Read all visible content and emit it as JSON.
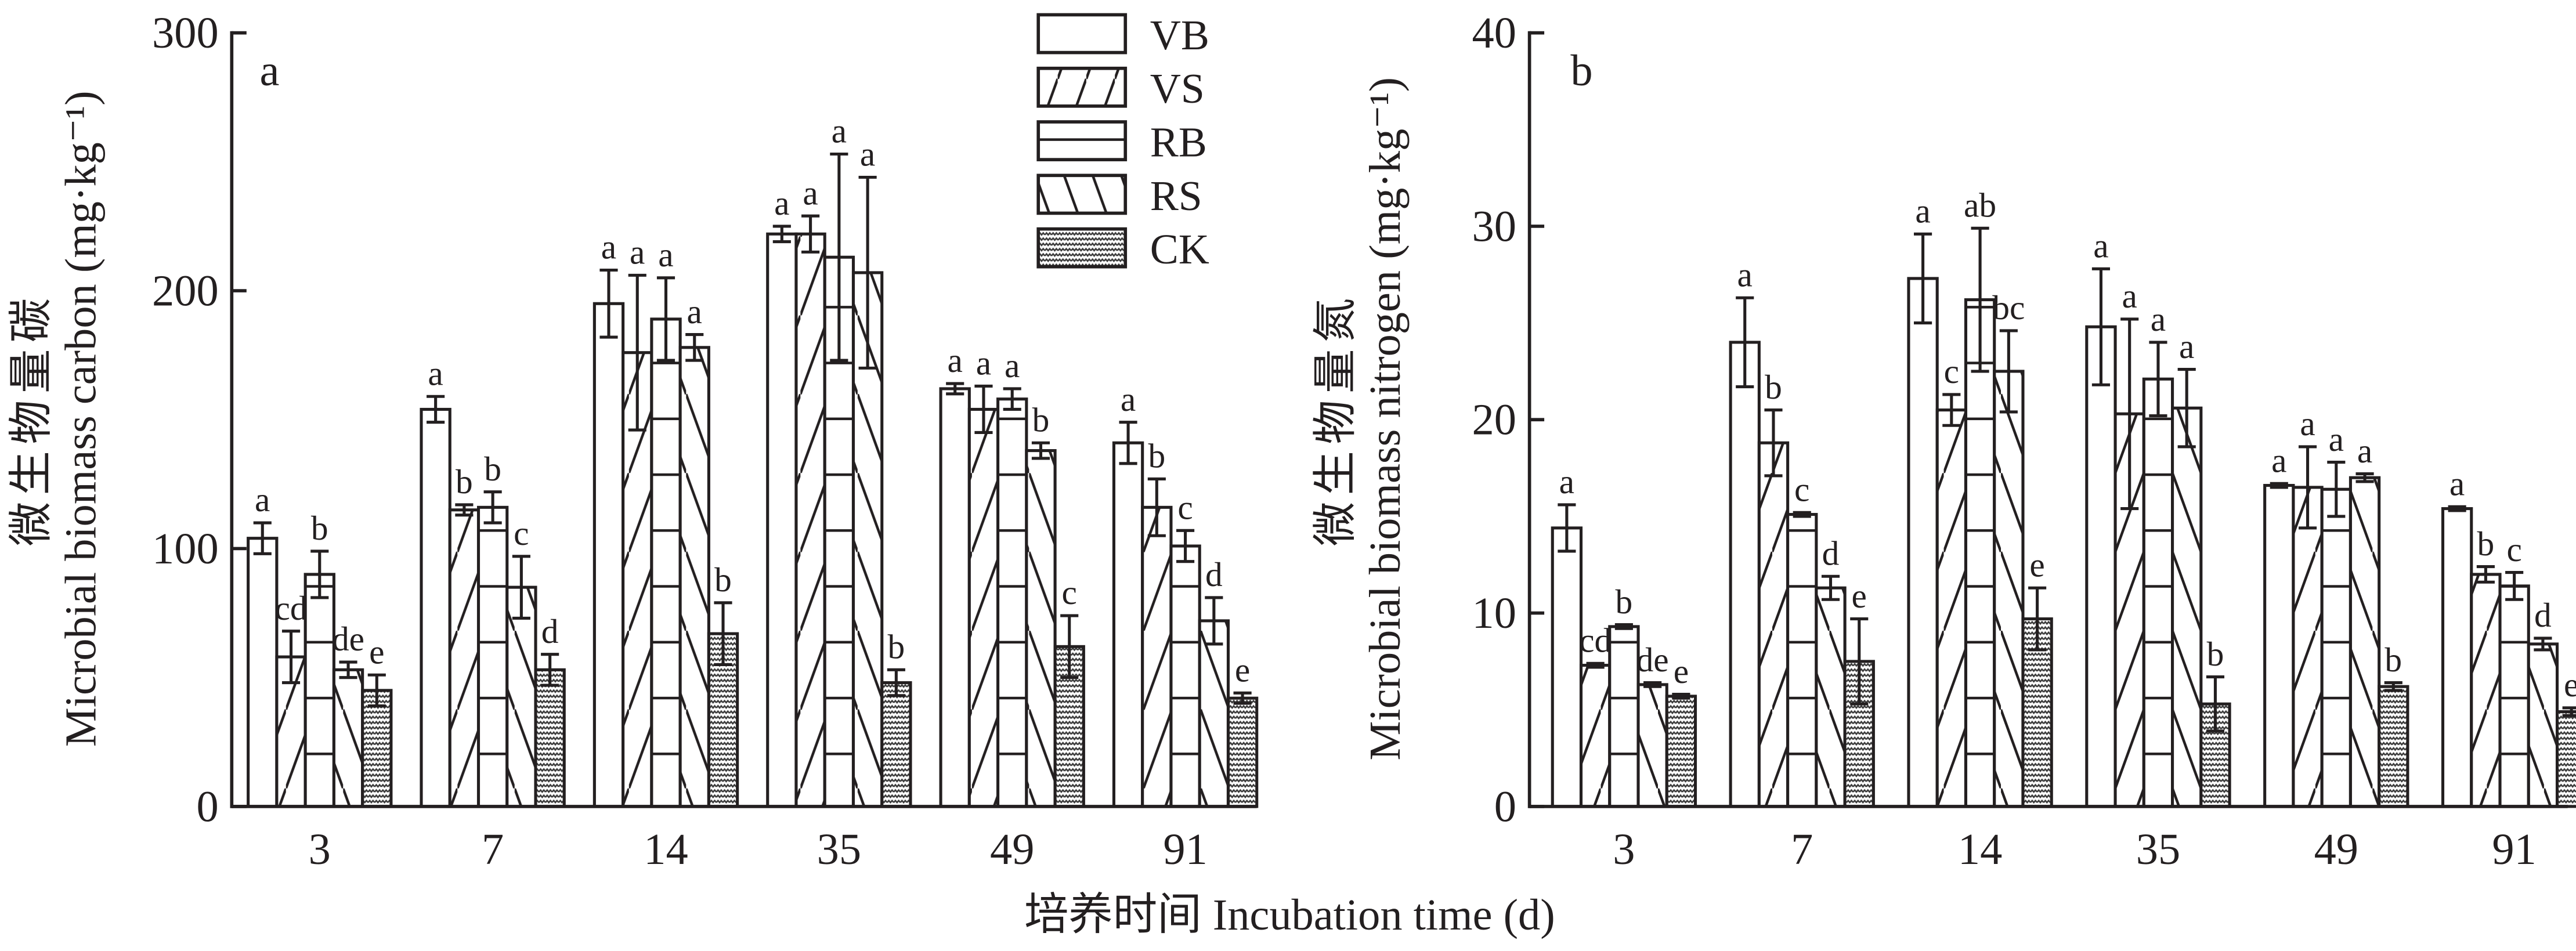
{
  "chart_data": [
    {
      "type": "bar",
      "panel_label": "a",
      "ylabel_cn": "微生物量碳",
      "ylabel": "Microbial biomass carbon (mg·kg⁻¹)",
      "xlabel": "培养时间 Incubation time (d)",
      "ylim": [
        0,
        300
      ],
      "yticks": [
        "0",
        "100",
        "200",
        "300"
      ],
      "categories": [
        "3",
        "7",
        "14",
        "35",
        "49",
        "91"
      ],
      "series": [
        {
          "name": "VB",
          "values": [
            104,
            154,
            195,
            222,
            162,
            141
          ],
          "errors": [
            6,
            5,
            13,
            3,
            2,
            8
          ],
          "letters": [
            "a",
            "a",
            "a",
            "a",
            "a",
            "a"
          ]
        },
        {
          "name": "VS",
          "values": [
            58,
            115,
            176,
            222,
            154,
            116
          ],
          "errors": [
            10,
            2,
            30,
            7,
            9,
            11
          ],
          "letters": [
            "cd",
            "b",
            "a",
            "a",
            "a",
            "b"
          ]
        },
        {
          "name": "RB",
          "values": [
            90,
            116,
            189,
            213,
            158,
            101
          ],
          "errors": [
            9,
            6,
            16,
            40,
            4,
            6
          ],
          "letters": [
            "b",
            "b",
            "a",
            "a",
            "a",
            "c"
          ]
        },
        {
          "name": "RS",
          "values": [
            53,
            85,
            178,
            207,
            138,
            72
          ],
          "errors": [
            3,
            12,
            5,
            37,
            3,
            9
          ],
          "letters": [
            "de",
            "c",
            "a",
            "a",
            "b",
            "d"
          ]
        },
        {
          "name": "CK",
          "values": [
            45,
            53,
            67,
            48,
            62,
            42
          ],
          "errors": [
            6,
            6,
            12,
            5,
            12,
            2
          ],
          "letters": [
            "e",
            "d",
            "b",
            "b",
            "c",
            "e"
          ]
        }
      ],
      "legend": "top-right",
      "grid": false
    },
    {
      "type": "bar",
      "panel_label": "b",
      "ylabel_cn": "微生物量氮",
      "ylabel": "Microbial biomass nitrogen (mg·kg⁻¹)",
      "xlabel": "培养时间 Incubation time (d)",
      "ylim": [
        0,
        40
      ],
      "yticks": [
        "0",
        "10",
        "20",
        "30",
        "40"
      ],
      "categories": [
        "3",
        "7",
        "14",
        "35",
        "49",
        "91"
      ],
      "series": [
        {
          "name": "VB",
          "values": [
            14.4,
            24.0,
            27.3,
            24.8,
            16.6,
            15.4
          ],
          "errors": [
            1.2,
            2.3,
            2.3,
            3.0,
            0.1,
            0.1
          ],
          "letters": [
            "a",
            "a",
            "a",
            "a",
            "a",
            "a"
          ]
        },
        {
          "name": "VS",
          "values": [
            7.3,
            18.8,
            20.5,
            20.3,
            16.5,
            12.0
          ],
          "errors": [
            0.1,
            1.7,
            0.8,
            4.9,
            2.1,
            0.4
          ],
          "letters": [
            "cd",
            "b",
            "c",
            "a",
            "a",
            "b"
          ]
        },
        {
          "name": "RB",
          "values": [
            9.3,
            15.1,
            26.2,
            22.1,
            16.4,
            11.4
          ],
          "errors": [
            0.1,
            0.1,
            3.7,
            1.9,
            1.4,
            0.7
          ],
          "letters": [
            "b",
            "c",
            "ab",
            "a",
            "a",
            "c"
          ]
        },
        {
          "name": "RS",
          "values": [
            6.3,
            11.3,
            22.5,
            20.6,
            17.0,
            8.4
          ],
          "errors": [
            0.1,
            0.6,
            2.1,
            2.0,
            0.2,
            0.3
          ],
          "letters": [
            "de",
            "d",
            "bc",
            "a",
            "a",
            "d"
          ]
        },
        {
          "name": "CK",
          "values": [
            5.7,
            7.5,
            9.7,
            5.3,
            6.2,
            4.9
          ],
          "errors": [
            0.1,
            2.2,
            1.6,
            1.4,
            0.2,
            0.2
          ],
          "letters": [
            "e",
            "e",
            "e",
            "b",
            "b",
            "e"
          ]
        }
      ],
      "legend": "none",
      "grid": false
    }
  ],
  "legend_items": [
    "VB",
    "VS",
    "RB",
    "RS",
    "CK"
  ],
  "colors": {
    "ink": "#231f20",
    "ck_fill": "#8a8a8a"
  }
}
